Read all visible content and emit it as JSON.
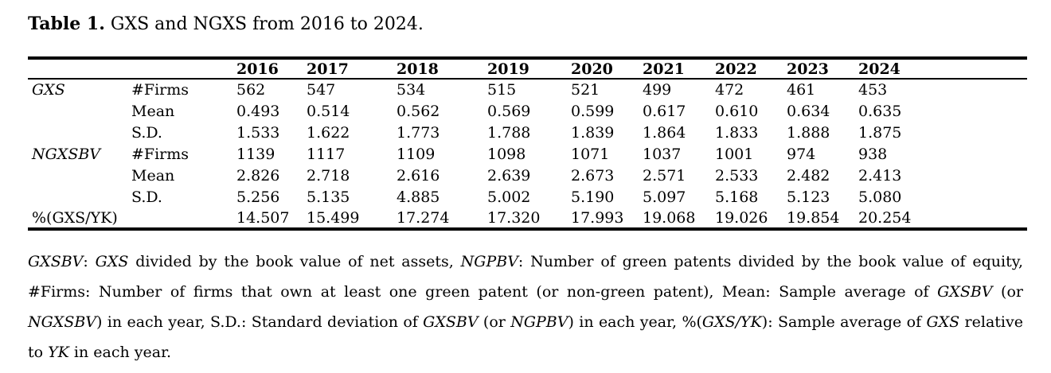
{
  "title": {
    "label": "Table 1.",
    "text": " GXS and NGXS from 2016 to 2024."
  },
  "table": {
    "years": [
      "2016",
      "2017",
      "2018",
      "2019",
      "2020",
      "2021",
      "2022",
      "2023",
      "2024"
    ],
    "rows": [
      {
        "group": "GXS",
        "group_italic": true,
        "stat": "#Firms",
        "values": [
          "562",
          "547",
          "534",
          "515",
          "521",
          "499",
          "472",
          "461",
          "453"
        ]
      },
      {
        "group": "",
        "group_italic": false,
        "stat": "Mean",
        "values": [
          "0.493",
          "0.514",
          "0.562",
          "0.569",
          "0.599",
          "0.617",
          "0.610",
          "0.634",
          "0.635"
        ]
      },
      {
        "group": "",
        "group_italic": false,
        "stat": "S.D.",
        "values": [
          "1.533",
          "1.622",
          "1.773",
          "1.788",
          "1.839",
          "1.864",
          "1.833",
          "1.888",
          "1.875"
        ]
      },
      {
        "group": "NGXSBV",
        "group_italic": true,
        "stat": "#Firms",
        "values": [
          "1139",
          "1117",
          "1109",
          "1098",
          "1071",
          "1037",
          "1001",
          "974",
          "938"
        ]
      },
      {
        "group": "",
        "group_italic": false,
        "stat": "Mean",
        "values": [
          "2.826",
          "2.718",
          "2.616",
          "2.639",
          "2.673",
          "2.571",
          "2.533",
          "2.482",
          "2.413"
        ]
      },
      {
        "group": "",
        "group_italic": false,
        "stat": "S.D.",
        "values": [
          "5.256",
          "5.135",
          "4.885",
          "5.002",
          "5.190",
          "5.097",
          "5.168",
          "5.123",
          "5.080"
        ]
      },
      {
        "group": "%(GXS/YK)",
        "group_italic": false,
        "stat": "",
        "values": [
          "14.507",
          "15.499",
          "17.274",
          "17.320",
          "17.993",
          "19.068",
          "19.026",
          "19.854",
          "20.254"
        ]
      }
    ]
  },
  "footnote": {
    "segments": [
      {
        "t": "GXSBV",
        "i": true
      },
      {
        "t": ": ",
        "i": false
      },
      {
        "t": "GXS",
        "i": true
      },
      {
        "t": " divided by the book value of net assets, ",
        "i": false
      },
      {
        "t": "NGPBV",
        "i": true
      },
      {
        "t": ": Number of green patents divided by the book value of equity, #Firms: Number of firms that own at least one green patent (or non-green patent), Mean: Sample average of ",
        "i": false
      },
      {
        "t": "GXSBV",
        "i": true
      },
      {
        "t": " (or ",
        "i": false
      },
      {
        "t": "NGXSBV",
        "i": true
      },
      {
        "t": ") in each year, S.D.: Standard deviation of ",
        "i": false
      },
      {
        "t": "GXSBV",
        "i": true
      },
      {
        "t": " (or ",
        "i": false
      },
      {
        "t": "NGPBV",
        "i": true
      },
      {
        "t": ") in each year, %(",
        "i": false
      },
      {
        "t": "GXS/YK",
        "i": true
      },
      {
        "t": "): Sample average of ",
        "i": false
      },
      {
        "t": "GXS",
        "i": true
      },
      {
        "t": " relative to ",
        "i": false
      },
      {
        "t": "YK",
        "i": true
      },
      {
        "t": " in each year.",
        "i": false
      }
    ]
  }
}
